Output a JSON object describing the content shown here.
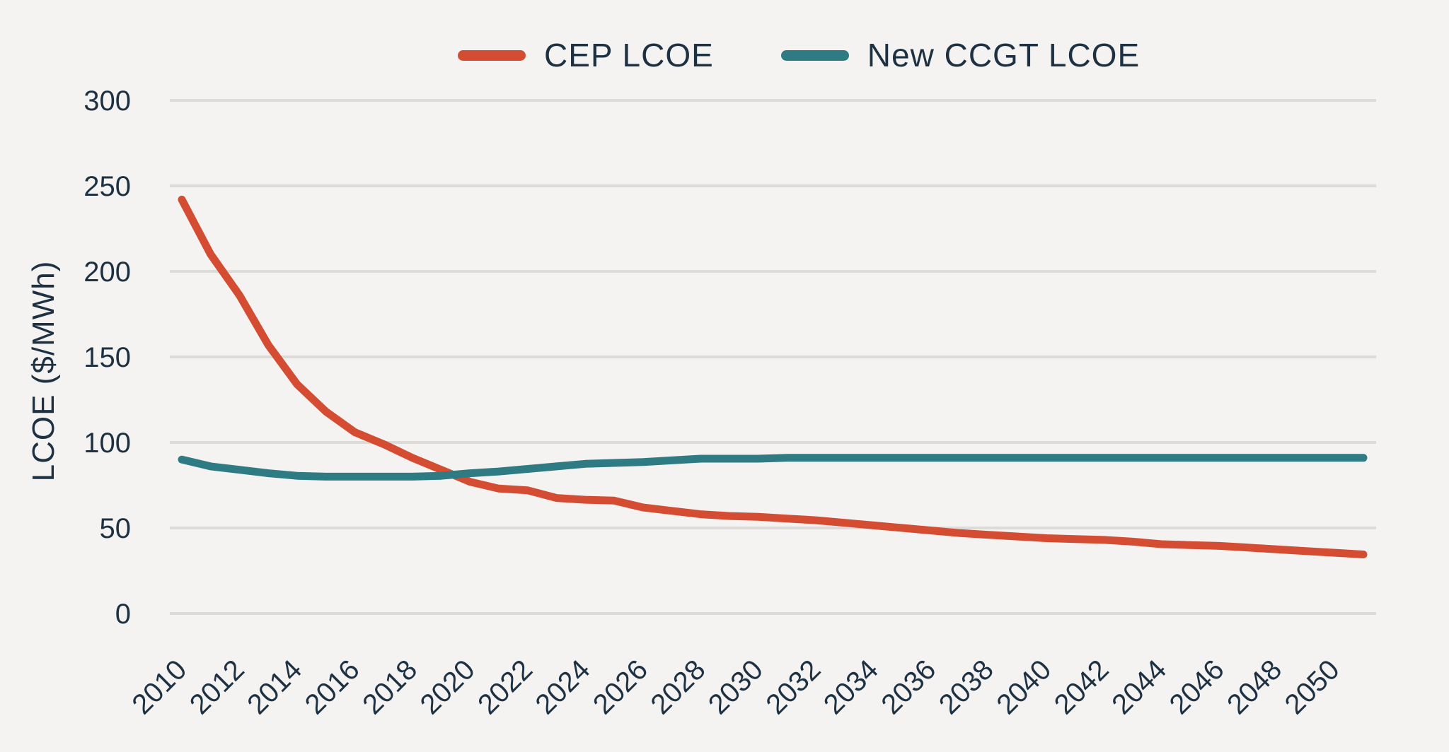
{
  "colors": {
    "background": "#f4f3f1",
    "grid": "#dcdbd8",
    "text": "#1e3142",
    "cep_line": "#d44d33",
    "ccgt_line": "#2f7b83"
  },
  "y_axis": {
    "title": "LCOE ($/MWh)",
    "ticks": [
      0,
      50,
      100,
      150,
      200,
      250,
      300
    ]
  },
  "x_axis": {
    "tick_labels": [
      "2010",
      "2012",
      "2014",
      "2016",
      "2018",
      "2020",
      "2022",
      "2024",
      "2026",
      "2028",
      "2030",
      "2032",
      "2034",
      "2036",
      "2038",
      "2040",
      "2042",
      "2044",
      "2046",
      "2048",
      "2050"
    ]
  },
  "chart_data": {
    "type": "line",
    "title": "",
    "xlabel": "",
    "ylabel": "LCOE ($/MWh)",
    "ylim": [
      0,
      300
    ],
    "xlim": [
      2010,
      2051
    ],
    "grid": "horizontal-only",
    "legend_position": "top-center",
    "x": [
      2010,
      2011,
      2012,
      2013,
      2014,
      2015,
      2016,
      2017,
      2018,
      2019,
      2020,
      2021,
      2022,
      2023,
      2024,
      2025,
      2026,
      2027,
      2028,
      2029,
      2030,
      2031,
      2032,
      2033,
      2034,
      2035,
      2036,
      2037,
      2038,
      2039,
      2040,
      2041,
      2042,
      2043,
      2044,
      2045,
      2046,
      2047,
      2048,
      2049,
      2050,
      2051
    ],
    "series": [
      {
        "name": "CEP LCOE",
        "color": "#d44d33",
        "values": [
          242,
          210,
          186,
          157,
          134,
          118,
          106,
          99,
          91,
          84,
          77,
          73,
          72,
          67.5,
          66.5,
          66,
          62,
          60,
          58,
          57,
          56.5,
          55.5,
          54.5,
          53,
          51.5,
          50,
          48.5,
          47,
          46,
          45,
          44,
          43.5,
          43,
          42,
          40.5,
          40,
          39.5,
          38.5,
          37.5,
          36.5,
          35.5,
          34.5
        ]
      },
      {
        "name": "New CCGT LCOE",
        "color": "#2f7b83",
        "values": [
          90,
          86,
          84,
          82,
          80.5,
          80,
          80,
          80,
          80,
          80.5,
          82,
          83,
          84.5,
          86,
          87.5,
          88,
          88.5,
          89.5,
          90.5,
          90.5,
          90.5,
          91,
          91,
          91,
          91,
          91,
          91,
          91,
          91,
          91,
          91,
          91,
          91,
          91,
          91,
          91,
          91,
          91,
          91,
          91,
          91,
          91
        ]
      }
    ]
  }
}
